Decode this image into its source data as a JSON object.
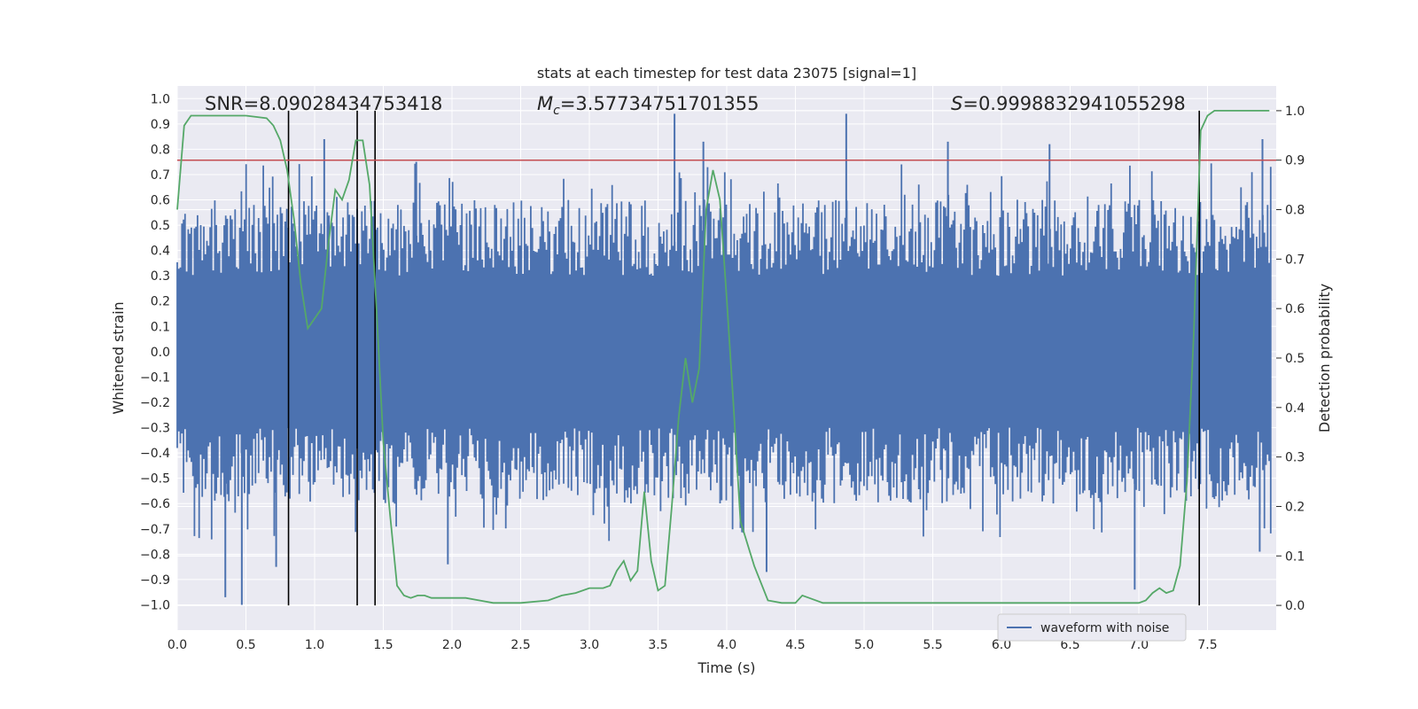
{
  "chart_data": {
    "type": "line",
    "title": "stats at each timestep for test data 23075 [signal=1]",
    "xlabel": "Time (s)",
    "ylabel_left": "Whitened strain",
    "ylabel_right": "Detection probability",
    "xlim": [
      0.0,
      8.0
    ],
    "ylim_left": [
      -1.1,
      1.05
    ],
    "ylim_right": [
      -0.05,
      1.05
    ],
    "x_ticks": [
      "0.0",
      "0.5",
      "1.0",
      "1.5",
      "2.0",
      "2.5",
      "3.0",
      "3.5",
      "4.0",
      "4.5",
      "5.0",
      "5.5",
      "6.0",
      "6.5",
      "7.0",
      "7.5"
    ],
    "x_tick_values": [
      0.0,
      0.5,
      1.0,
      1.5,
      2.0,
      2.5,
      3.0,
      3.5,
      4.0,
      4.5,
      5.0,
      5.5,
      6.0,
      6.5,
      7.0,
      7.5
    ],
    "y_left_ticks": [
      "1.0",
      "0.9",
      "0.8",
      "0.7",
      "0.6",
      "0.5",
      "0.4",
      "0.3",
      "0.2",
      "0.1",
      "0.0",
      "−0.1",
      "−0.2",
      "−0.3",
      "−0.4",
      "−0.5",
      "−0.6",
      "−0.7",
      "−0.8",
      "−0.9",
      "−1.0"
    ],
    "y_left_tick_values": [
      1.0,
      0.9,
      0.8,
      0.7,
      0.6,
      0.5,
      0.4,
      0.3,
      0.2,
      0.1,
      0.0,
      -0.1,
      -0.2,
      -0.3,
      -0.4,
      -0.5,
      -0.6,
      -0.7,
      -0.8,
      -0.9,
      -1.0
    ],
    "y_right_ticks": [
      "1.0",
      "0.9",
      "0.8",
      "0.7",
      "0.6",
      "0.5",
      "0.4",
      "0.3",
      "0.2",
      "0.1",
      "0.0"
    ],
    "y_right_tick_values": [
      1.0,
      0.9,
      0.8,
      0.7,
      0.6,
      0.5,
      0.4,
      0.3,
      0.2,
      0.1,
      0.0
    ],
    "annotations": {
      "snr": "SNR=8.09028434753418",
      "mc_symbol": "M",
      "mc_sub": "c",
      "mc_value": "=3.57734751701355",
      "s_symbol": "S",
      "s_value": "=0.9998832941055298"
    },
    "threshold": {
      "value": 0.9,
      "axis": "right",
      "color": "#c44e52"
    },
    "vertical_markers": [
      0.81,
      1.31,
      1.44,
      7.44
    ],
    "waveform": {
      "name": "waveform with noise",
      "color": "#4c72b0",
      "n_samples": 700,
      "envelope_typical": 0.4,
      "peaks": [
        {
          "t": 0.35,
          "v": -0.97
        },
        {
          "t": 0.47,
          "v": -1.0
        },
        {
          "t": 0.72,
          "v": -0.85
        },
        {
          "t": 1.07,
          "v": 0.84
        },
        {
          "t": 1.74,
          "v": 0.75
        },
        {
          "t": 1.97,
          "v": -0.84
        },
        {
          "t": 3.62,
          "v": 0.94
        },
        {
          "t": 3.83,
          "v": 0.83
        },
        {
          "t": 4.29,
          "v": -0.87
        },
        {
          "t": 4.87,
          "v": 0.94
        },
        {
          "t": 5.61,
          "v": 0.83
        },
        {
          "t": 6.35,
          "v": 0.82
        },
        {
          "t": 6.97,
          "v": -0.94
        },
        {
          "t": 7.9,
          "v": 0.84
        },
        {
          "t": 7.88,
          "v": -0.79
        }
      ]
    },
    "probability": {
      "name": "detection probability",
      "color": "#55a868",
      "x": [
        0.0,
        0.05,
        0.1,
        0.2,
        0.3,
        0.5,
        0.65,
        0.7,
        0.75,
        0.8,
        0.85,
        0.9,
        0.95,
        1.05,
        1.1,
        1.15,
        1.2,
        1.25,
        1.3,
        1.35,
        1.4,
        1.45,
        1.5,
        1.55,
        1.6,
        1.65,
        1.7,
        1.75,
        1.8,
        1.85,
        1.9,
        2.0,
        2.1,
        2.2,
        2.3,
        2.5,
        2.7,
        2.8,
        2.9,
        3.0,
        3.1,
        3.15,
        3.2,
        3.25,
        3.3,
        3.35,
        3.4,
        3.45,
        3.5,
        3.55,
        3.6,
        3.65,
        3.7,
        3.75,
        3.8,
        3.85,
        3.9,
        3.95,
        4.0,
        4.05,
        4.1,
        4.2,
        4.3,
        4.4,
        4.5,
        4.55,
        4.6,
        4.7,
        5.0,
        5.5,
        6.0,
        6.3,
        6.5,
        7.0,
        7.05,
        7.1,
        7.15,
        7.2,
        7.25,
        7.3,
        7.35,
        7.4,
        7.45,
        7.5,
        7.55,
        7.6,
        7.8,
        7.95
      ],
      "y": [
        0.8,
        0.97,
        0.99,
        0.99,
        0.99,
        0.99,
        0.985,
        0.97,
        0.94,
        0.88,
        0.78,
        0.65,
        0.56,
        0.6,
        0.73,
        0.84,
        0.82,
        0.86,
        0.94,
        0.94,
        0.85,
        0.6,
        0.33,
        0.18,
        0.04,
        0.02,
        0.015,
        0.02,
        0.02,
        0.015,
        0.015,
        0.015,
        0.015,
        0.01,
        0.005,
        0.005,
        0.01,
        0.02,
        0.025,
        0.035,
        0.035,
        0.04,
        0.07,
        0.09,
        0.05,
        0.07,
        0.23,
        0.09,
        0.03,
        0.04,
        0.2,
        0.38,
        0.5,
        0.41,
        0.48,
        0.8,
        0.88,
        0.82,
        0.62,
        0.4,
        0.17,
        0.08,
        0.01,
        0.005,
        0.005,
        0.02,
        0.015,
        0.005,
        0.005,
        0.005,
        0.005,
        0.005,
        0.005,
        0.005,
        0.01,
        0.025,
        0.035,
        0.025,
        0.03,
        0.08,
        0.25,
        0.55,
        0.96,
        0.99,
        1.0,
        1.0,
        1.0,
        1.0
      ]
    },
    "legend": {
      "label": "waveform with noise",
      "location": "lower-right"
    },
    "colors": {
      "background": "#eaeaf2",
      "grid": "#ffffff",
      "marker": "#000000"
    }
  }
}
